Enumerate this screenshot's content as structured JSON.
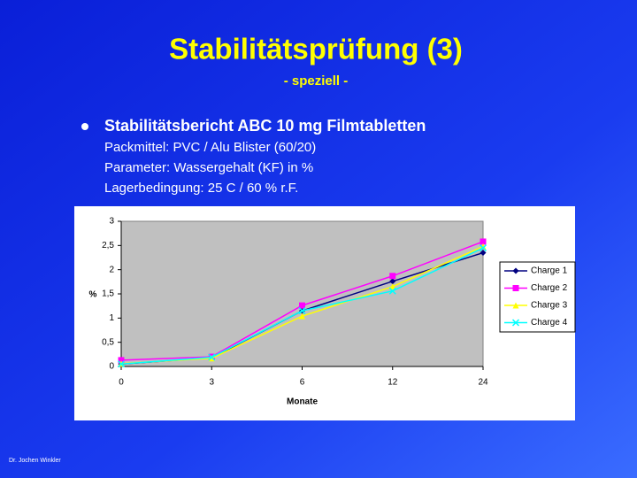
{
  "slide": {
    "title": "Stabilitätsprüfung (3)",
    "subtitle": "- speziell -",
    "heading": "Stabilitätsbericht ABC 10 mg Filmtabletten",
    "lines": [
      "Packmittel: PVC / Alu Blister (60/20)",
      "Parameter: Wassergehalt (KF) in %",
      "Lagerbedingung: 25 C / 60 % r.F."
    ],
    "footer": "Dr. Jochen Winkler"
  },
  "chart_data": {
    "type": "line",
    "x_label": "Monate",
    "y_label": "%",
    "categories": [
      "0",
      "3",
      "6",
      "12",
      "24"
    ],
    "ylim": [
      0,
      3
    ],
    "yticks": [
      0,
      {
        "value": 0.5,
        "label": "0,5"
      },
      1,
      {
        "value": 1.5,
        "label": "1,5"
      },
      2,
      {
        "value": 2.5,
        "label": "2,5"
      },
      3
    ],
    "legend": "right",
    "plot_background": "#c0c0c0",
    "series": [
      {
        "name": "Charge 1",
        "color": "#000080",
        "values": [
          0.05,
          0.18,
          1.15,
          1.76,
          2.35
        ]
      },
      {
        "name": "Charge 2",
        "color": "#ff00ff",
        "values": [
          0.13,
          0.2,
          1.26,
          1.87,
          2.58
        ]
      },
      {
        "name": "Charge 3",
        "color": "#ffff00",
        "values": [
          0.06,
          0.17,
          1.04,
          1.65,
          2.48
        ]
      },
      {
        "name": "Charge 4",
        "color": "#00ffff",
        "values": [
          0.05,
          0.19,
          1.15,
          1.56,
          2.45
        ]
      }
    ]
  }
}
